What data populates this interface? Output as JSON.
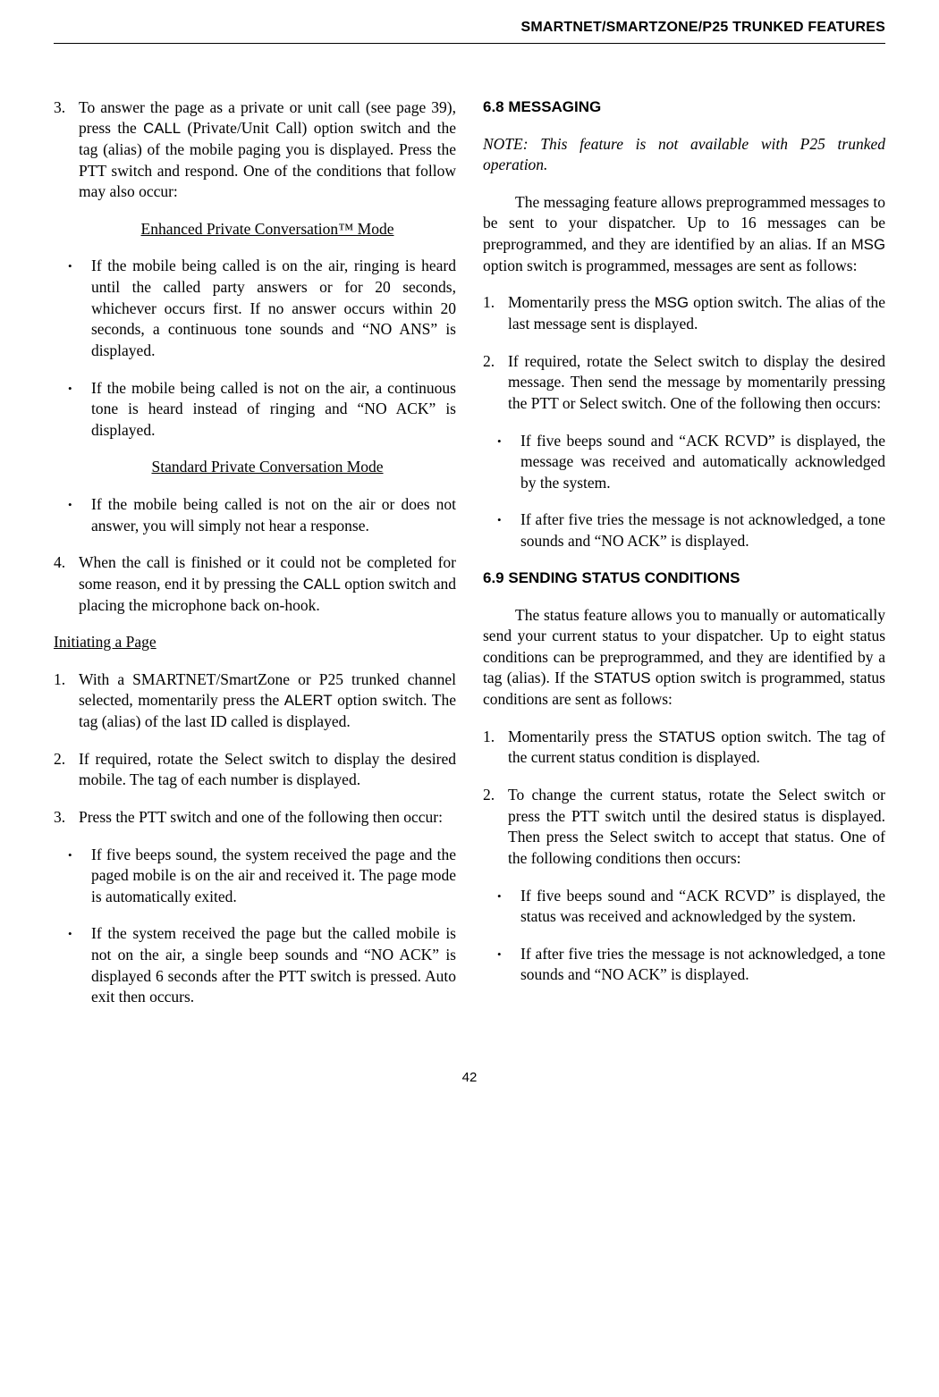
{
  "header": "SMARTNET/SMARTZONE/P25 TRUNKED FEATURES",
  "left": {
    "item3_pre": "To answer the page as a private or unit call (see page 39), press the ",
    "item3_call": "CALL",
    "item3_post": " (Private/Unit Call) option switch and the tag (alias) of the mobile paging you is displayed. Press the PTT switch and respond. One of the conditions that follow may also occur:",
    "mode1": "Enhanced Private Conversation™ Mode",
    "b1": "If the mobile being called is on the air, ringing is heard until the called party answers or for 20 seconds, whichever occurs first. If no answer occurs within 20 seconds, a continuous tone sounds and “NO ANS” is displayed.",
    "b2": "If the mobile being called is not on the air, a continuous tone is heard instead of ringing and “NO ACK” is displayed.",
    "mode2": "Standard Private Conversation Mode",
    "b3": "If the mobile being called is not on the air or does not answer, you will simply not hear a response.",
    "item4_pre": "When the call is finished or it could not be completed for some reason, end it by pressing the ",
    "item4_call": "CALL",
    "item4_post": " option switch and placing the microphone back on-hook.",
    "initiating": "Initiating a Page",
    "p1_pre": "With a SMARTNET/SmartZone or P25 trunked channel selected, momentarily press the ",
    "p1_alert": "ALERT",
    "p1_post": " option switch. The tag (alias) of the last ID called is displayed.",
    "p2": "If required, rotate the Select switch to display the desired mobile. The tag of each number is displayed.",
    "p3": "Press the PTT switch and one of the following then occur:",
    "pb1": "If five beeps sound, the system received the page and the paged mobile is on the air and received it. The page mode is automatically exited.",
    "pb2": "If the system received the page but the called mobile is not on the air, a single beep sounds and “NO ACK” is displayed 6 seconds after the PTT switch is pressed. Auto exit then occurs."
  },
  "right": {
    "h68": "6.8 MESSAGING",
    "note": "NOTE: This feature is not available with P25 trunked operation.",
    "msg_para_pre": "The messaging feature allows preprogrammed messages to be sent to your dispatcher. Up to 16 messages can be preprogrammed, and they are identified by an alias. If an ",
    "msg": "MSG",
    "msg_para_post": " option switch is programmed, messages are sent as follows:",
    "m1_pre": "Momentarily press the ",
    "m1_msg": "MSG",
    "m1_post": " option switch. The alias of the last message sent is displayed.",
    "m2": "If required, rotate the Select switch to display the desired message. Then send the message by momentarily pressing the PTT or Select switch. One of the following then occurs:",
    "mb1": "If five beeps sound and “ACK RCVD” is displayed, the message was received and automatically acknowledged by the system.",
    "mb2": "If after five tries the message is not acknowledged, a tone sounds and “NO ACK” is displayed.",
    "h69": "6.9 SENDING STATUS CONDITIONS",
    "st_para_pre": "The status feature allows you to manually or automatically send your current status to your dispatcher. Up to eight status conditions can be preprogrammed, and they are identified by a tag (alias). If the ",
    "status1": "STATUS",
    "st_para_post": " option switch is programmed, status conditions are sent as follows:",
    "s1_pre": "Momentarily press the ",
    "status2": "STATUS",
    "s1_post": " option switch. The tag of the current status condition is displayed.",
    "s2": "To change the current status, rotate the Select switch or press the PTT switch until the desired status is displayed. Then press the Select switch to accept that status. One of the following conditions then occurs:",
    "sb1": "If five beeps sound and “ACK RCVD” is displayed, the status was received and acknowledged by the system.",
    "sb2": "If after five tries the message is not acknowledged, a tone sounds and “NO ACK” is displayed."
  },
  "page_num": "42",
  "nums": {
    "n1": "1.",
    "n2": "2.",
    "n3": "3.",
    "n4": "4."
  },
  "bullet": "•"
}
